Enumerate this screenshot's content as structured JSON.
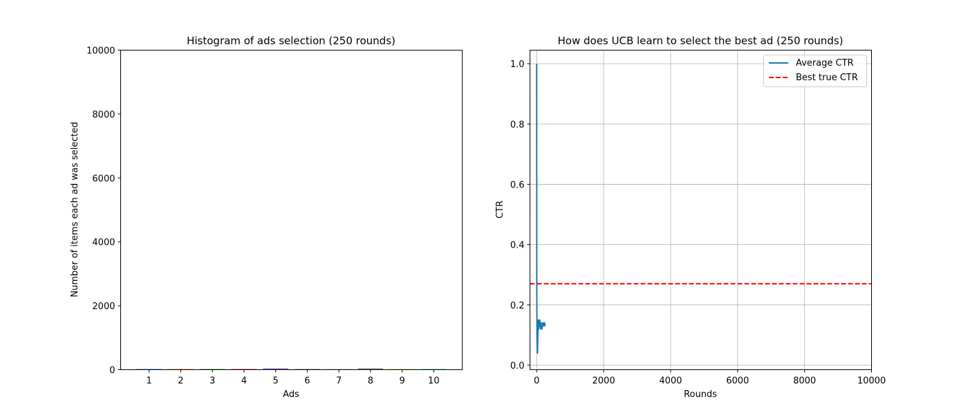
{
  "chart_data": [
    {
      "type": "bar",
      "title": "Histogram of ads selection (250 rounds)",
      "xlabel": "Ads",
      "ylabel": "Number of items each ad was selected",
      "categories": [
        "1",
        "2",
        "3",
        "4",
        "5",
        "6",
        "7",
        "8",
        "9",
        "10"
      ],
      "values": [
        21,
        22,
        22,
        22,
        41,
        20,
        19,
        41,
        21,
        21
      ],
      "colors": [
        "#1f77b4",
        "#ff7f0e",
        "#2ca02c",
        "#d62728",
        "#9467bd",
        "#8c564b",
        "#e377c2",
        "#7f7f7f",
        "#bcbd22",
        "#17becf"
      ],
      "ylim": [
        0,
        10000
      ],
      "yticks": [
        0,
        2000,
        4000,
        6000,
        8000,
        10000
      ],
      "ytick_labels": [
        "0",
        "2000",
        "4000",
        "6000",
        "8000",
        "10000"
      ],
      "grid": false
    },
    {
      "type": "line",
      "title": "How does UCB learn to select the best ad (250 rounds)",
      "xlabel": "Rounds",
      "ylabel": "CTR",
      "xlim": [
        -200,
        10000
      ],
      "ylim": [
        -0.015,
        1.045
      ],
      "xticks": [
        0,
        2000,
        4000,
        6000,
        8000,
        10000
      ],
      "xtick_labels": [
        "0",
        "2000",
        "4000",
        "6000",
        "8000",
        "10000"
      ],
      "yticks": [
        0.0,
        0.2,
        0.4,
        0.6,
        0.8,
        1.0
      ],
      "ytick_labels": [
        "0.0",
        "0.2",
        "0.4",
        "0.6",
        "0.8",
        "1.0"
      ],
      "grid": true,
      "legend_position": "top-right",
      "series": [
        {
          "name": "Average CTR",
          "color": "#1f77b4",
          "style": "solid",
          "x": [
            1,
            2,
            3,
            4,
            5,
            6,
            8,
            10,
            12,
            15,
            18,
            20,
            25,
            30,
            35,
            40,
            45,
            50,
            55,
            60,
            70,
            80,
            90,
            100,
            110,
            120,
            130,
            140,
            150,
            160,
            170,
            180,
            190,
            200,
            210,
            220,
            230,
            240,
            250
          ],
          "y": [
            1.0,
            0.5,
            0.33,
            0.25,
            0.2,
            0.17,
            0.13,
            0.1,
            0.08,
            0.07,
            0.05,
            0.04,
            0.04,
            0.07,
            0.1,
            0.12,
            0.14,
            0.15,
            0.13,
            0.12,
            0.14,
            0.13,
            0.15,
            0.14,
            0.13,
            0.12,
            0.13,
            0.14,
            0.13,
            0.12,
            0.13,
            0.14,
            0.14,
            0.14,
            0.13,
            0.14,
            0.13,
            0.14,
            0.13
          ]
        },
        {
          "name": "Best true CTR",
          "color": "#ff0000",
          "style": "dashed",
          "constant_y": 0.27
        }
      ]
    }
  ]
}
